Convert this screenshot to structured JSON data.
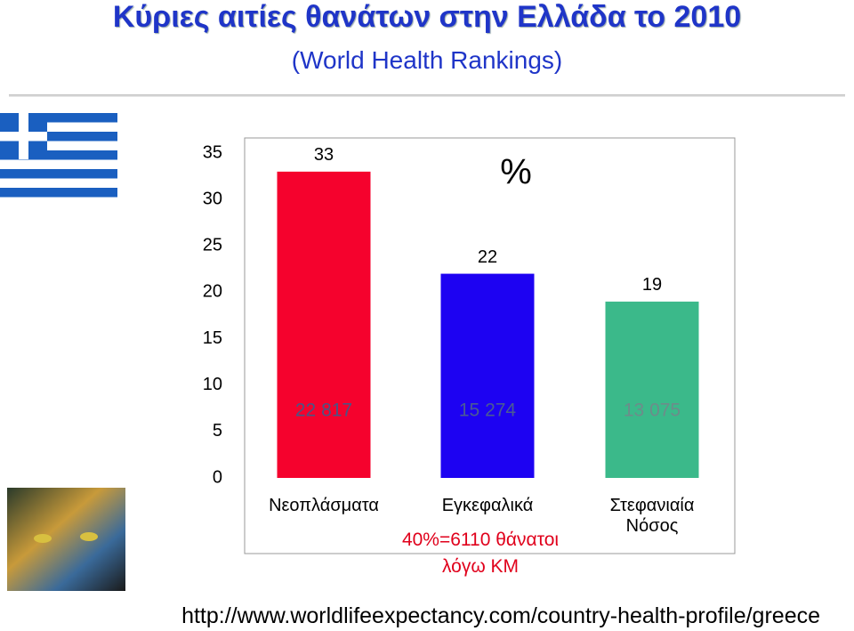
{
  "title": "Κύριες αιτίες θανάτων στην Ελλάδα το 2010",
  "subtitle": "(World Health Rankings)",
  "chart_data": {
    "type": "bar",
    "unit_label": "%",
    "categories": [
      "Νεοπλάσματα",
      "Εγκεφαλικά",
      "Στεφανιαία Νόσος"
    ],
    "values": [
      33,
      22,
      19
    ],
    "colors": [
      "#f5022d",
      "#1d02f2",
      "#3bb98a"
    ],
    "death_labels": [
      "22 817",
      "15 274",
      "13 075"
    ],
    "death_label_colors": [
      "#4a5585",
      "#4a5a95",
      "#6d8c8a"
    ],
    "annotation": "40%=6110 θάνατοι λόγω ΚΜ",
    "ylim": [
      0,
      35
    ],
    "yticks": [
      0,
      5,
      10,
      15,
      20,
      25,
      30,
      35
    ],
    "grid": false
  },
  "source_url": "http://www.worldlifeexpectancy.com/country-health-profile/greece"
}
